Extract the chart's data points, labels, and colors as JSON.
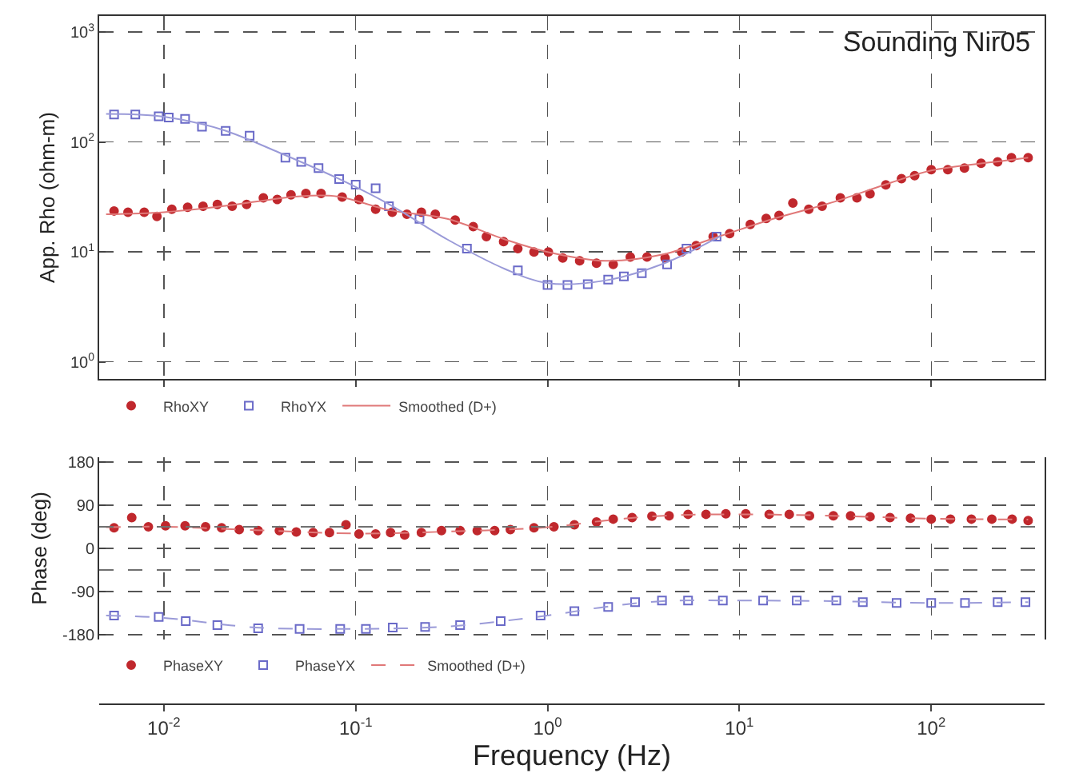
{
  "chart_data": [
    {
      "type": "scatter",
      "title": "Sounding Nir05",
      "ylabel": "App. Rho (ohm-m)",
      "log": "xy",
      "grid": true,
      "legend": "bottom",
      "tick_labels": "y",
      "xlim": [
        0.0046,
        390
      ],
      "xticks": [
        {
          "value": 0.01,
          "label": null
        },
        {
          "value": 0.1,
          "label": null
        },
        {
          "value": 1,
          "label": null
        },
        {
          "value": 10,
          "label": null
        },
        {
          "value": 100,
          "label": null
        }
      ],
      "ylim": [
        0.7,
        1400
      ],
      "yticks": [
        {
          "value": 1,
          "label": "10$^{0}$"
        },
        {
          "value": 10,
          "label": "10$^{1}$"
        },
        {
          "value": 100,
          "label": "10$^{2}$"
        },
        {
          "value": 1000,
          "label": "10$^{3}$"
        }
      ],
      "series": [
        {
          "name": "RhoXY",
          "marker": "circle",
          "color": "#c0282d",
          "x": [
            0.0055,
            0.0065,
            0.0079,
            0.0092,
            0.011,
            0.0133,
            0.016,
            0.019,
            0.0227,
            0.027,
            0.033,
            0.039,
            0.046,
            0.055,
            0.066,
            0.085,
            0.104,
            0.127,
            0.155,
            0.185,
            0.22,
            0.26,
            0.33,
            0.41,
            0.48,
            0.59,
            0.7,
            0.85,
            1.01,
            1.2,
            1.47,
            1.8,
            2.2,
            2.7,
            3.3,
            4.1,
            5,
            5.95,
            7.3,
            8.9,
            11.4,
            13.8,
            16.1,
            19,
            23,
            27,
            33.6,
            41,
            48,
            58,
            70,
            82,
            100,
            122,
            149,
            182,
            222,
            262,
            320
          ],
          "values": [
            23.6,
            23,
            23,
            21,
            24.5,
            25.5,
            26,
            27,
            26,
            27,
            31,
            30,
            33,
            34,
            34,
            31.6,
            30,
            24.5,
            23,
            22,
            23,
            22,
            19.5,
            17,
            13.8,
            12.4,
            10.7,
            10,
            10,
            8.8,
            8.3,
            7.9,
            7.7,
            9,
            9,
            8.8,
            10,
            11.4,
            13.8,
            14.7,
            17.8,
            20.2,
            21.5,
            27.8,
            24.5,
            26,
            31,
            31,
            33.7,
            40.8,
            46.4,
            49.4,
            56,
            56,
            58,
            64,
            66,
            72,
            72
          ]
        },
        {
          "name": "RhoYX",
          "marker": "square",
          "color": "#6a6ac8",
          "x": [
            0.0055,
            0.0071,
            0.0094,
            0.0106,
            0.0129,
            0.0158,
            0.021,
            0.028,
            0.043,
            0.052,
            0.064,
            0.082,
            0.1,
            0.127,
            0.149,
            0.215,
            0.38,
            0.7,
            1.0,
            1.27,
            1.62,
            2.07,
            2.5,
            3.1,
            4.2,
            5.3,
            7.6
          ],
          "values": [
            178,
            178,
            171,
            167,
            162,
            138,
            126,
            114,
            72,
            66,
            58,
            46,
            41,
            38,
            26,
            20,
            10.7,
            6.8,
            5,
            5,
            5.1,
            5.6,
            6,
            6.4,
            7.7,
            10.7,
            13.8
          ]
        },
        {
          "name": "Smoothed (D+)",
          "type": "line",
          "line_style": "solid",
          "color": "#e07878",
          "x": [
            0.005,
            0.01,
            0.02,
            0.05,
            0.08,
            0.15,
            0.3,
            0.6,
            1,
            2,
            4,
            8,
            15,
            30,
            60,
            100,
            200,
            320
          ],
          "values": [
            22,
            23,
            26,
            32,
            32,
            24,
            20,
            13,
            10,
            8.3,
            9.5,
            14,
            20,
            28,
            42,
            55,
            65,
            72
          ]
        },
        {
          "type": "line",
          "line_style": "solid",
          "color": "#9a9ad8",
          "x": [
            0.005,
            0.01,
            0.02,
            0.04,
            0.08,
            0.15,
            0.3,
            0.6,
            1,
            2,
            4,
            8
          ],
          "values": [
            180,
            170,
            130,
            80,
            47,
            27,
            13,
            7,
            5.2,
            5.5,
            7.8,
            14
          ]
        }
      ]
    },
    {
      "type": "scatter",
      "xlabel": "Frequency (Hz)",
      "ylabel": "Phase (deg)",
      "log": "x",
      "grid": true,
      "legend": "bottom",
      "xlim": [
        0.0046,
        390
      ],
      "xticks": [
        {
          "value": 0.01,
          "label": "10$^{-2}$"
        },
        {
          "value": 0.1,
          "label": "10$^{-1}$"
        },
        {
          "value": 1,
          "label": "10$^{0}$"
        },
        {
          "value": 10,
          "label": "10$^{1}$"
        },
        {
          "value": 100,
          "label": "10$^{2}$"
        }
      ],
      "ylim": [
        -190,
        190
      ],
      "yticks": [
        -180,
        -90,
        0,
        90,
        180
      ],
      "ref_lines": [
        {
          "axis": "y",
          "value": 45,
          "line_style": "dashed",
          "color": "#707070"
        },
        {
          "axis": "y",
          "value": -45,
          "line_style": "dashed",
          "color": "#707070"
        }
      ],
      "series": [
        {
          "name": "PhaseXY",
          "marker": "circle",
          "color": "#c0282d",
          "x": [
            0.0055,
            0.0068,
            0.0083,
            0.0102,
            0.0129,
            0.0165,
            0.02,
            0.0247,
            0.031,
            0.04,
            0.049,
            0.06,
            0.073,
            0.089,
            0.104,
            0.127,
            0.152,
            0.18,
            0.22,
            0.28,
            0.35,
            0.43,
            0.53,
            0.64,
            0.85,
            1.08,
            1.38,
            1.8,
            2.2,
            2.76,
            3.5,
            4.3,
            5.4,
            6.7,
            8.5,
            10.8,
            14.3,
            18.2,
            23.2,
            30.9,
            38,
            48,
            61,
            78,
            100,
            126,
            162,
            207,
            264,
            320
          ],
          "values": [
            43,
            64,
            45,
            47,
            47,
            45,
            43,
            39,
            37,
            37,
            34,
            33,
            33,
            49,
            30,
            30,
            33,
            28,
            33,
            37,
            37,
            37,
            37,
            39,
            43,
            45,
            49,
            55,
            61,
            64,
            67,
            68,
            71,
            71,
            72,
            72,
            71,
            71,
            68,
            68,
            68,
            66,
            64,
            63,
            61,
            61,
            61,
            61,
            61,
            58
          ]
        },
        {
          "name": "PhaseYX",
          "marker": "square",
          "color": "#6a6ac8",
          "x": [
            0.0055,
            0.0094,
            0.013,
            0.019,
            0.031,
            0.051,
            0.083,
            0.113,
            0.156,
            0.23,
            0.35,
            0.57,
            0.92,
            1.38,
            2.07,
            2.86,
            3.95,
            5.4,
            8.2,
            13.3,
            19.9,
            32,
            44,
            66,
            100,
            150,
            222,
            310
          ],
          "values": [
            -140,
            -143,
            -152,
            -160,
            -167,
            -168,
            -168,
            -168,
            -165,
            -164,
            -160,
            -152,
            -140,
            -131,
            -122,
            -112,
            -109,
            -109,
            -109,
            -109,
            -109,
            -109,
            -112,
            -114,
            -114,
            -114,
            -112,
            -112
          ]
        },
        {
          "name": "Smoothed (D+)",
          "type": "line",
          "line_style": "dashed",
          "color": "#e07878",
          "x": [
            0.005,
            0.01,
            0.03,
            0.1,
            0.3,
            1,
            2,
            4,
            10,
            30,
            100,
            320
          ],
          "values": [
            44,
            45,
            38,
            31,
            35,
            44,
            58,
            68,
            71,
            68,
            62,
            60
          ]
        },
        {
          "type": "line",
          "line_style": "dashed",
          "color": "#9a9ad8",
          "x": [
            0.005,
            0.01,
            0.03,
            0.1,
            0.3,
            1,
            2,
            4,
            10,
            30,
            100,
            320
          ],
          "values": [
            -140,
            -145,
            -165,
            -168,
            -163,
            -140,
            -122,
            -110,
            -109,
            -110,
            -114,
            -112
          ]
        }
      ]
    }
  ]
}
